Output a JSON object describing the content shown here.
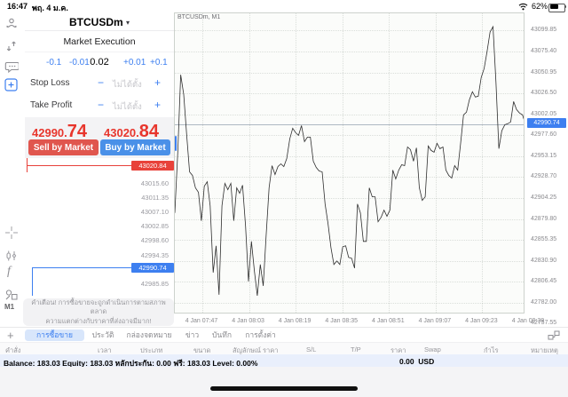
{
  "status_bar": {
    "time": "16:47",
    "date": "พฤ. 4 ม.ค.",
    "battery_pct": "62%"
  },
  "sidebar": {
    "icons": [
      "account-levels",
      "orders-up-down",
      "chat",
      "new-order",
      "crosshair",
      "candles",
      "indicators",
      "objects",
      "timeframe",
      "add"
    ],
    "timeframe": "M1"
  },
  "order_panel": {
    "symbol": "BTCUSDm",
    "symbol_chevron": "▾",
    "mode": "Market Execution",
    "volume": {
      "dec_large": "-0.1",
      "dec_small": "-0.01",
      "value": "0.02",
      "inc_small": "+0.01",
      "inc_large": "+0.1"
    },
    "stop_loss": {
      "label": "Stop Loss",
      "minus": "−",
      "value": "ไม่ได้ตั้ง",
      "plus": "+"
    },
    "take_profit": {
      "label": "Take Profit",
      "minus": "−",
      "value": "ไม่ได้ตั้ง",
      "plus": "+"
    },
    "bid_main": "42990.",
    "bid_frac": "74",
    "ask_main": "43020.",
    "ask_frac": "84",
    "sell_label": "Sell by Market",
    "buy_label": "Buy by Market",
    "ladder": [
      {
        "price": "43020.84",
        "badge": "ask"
      },
      {
        "price": "43015.60"
      },
      {
        "price": "43011.35"
      },
      {
        "price": "43007.10"
      },
      {
        "price": "43002.85"
      },
      {
        "price": "42998.60"
      },
      {
        "price": "42994.35"
      },
      {
        "price": "42990.74",
        "badge": "bid"
      },
      {
        "price": "42985.85"
      }
    ],
    "warning_line1": "คำเตือน! การซื้อขายจะถูกดำเนินการตามสภาพตลาด",
    "warning_line2": "ความแตกต่างกับราคาที่ส่งอาจมีมาก!"
  },
  "chart_data": {
    "type": "line",
    "title": "BTCUSDm, M1",
    "symbol": "BTCUSDm",
    "period": "M1",
    "current_bid": 42990.74,
    "current_ask": 43020.84,
    "ylim": [
      42768.3,
      43120.0
    ],
    "y_ticks": [
      43099.85,
      43075.4,
      43050.95,
      43026.5,
      43002.05,
      42977.6,
      42953.15,
      42928.7,
      42904.25,
      42879.8,
      42855.35,
      42830.9,
      42806.45,
      42782.0,
      42757.55
    ],
    "x_ticks": [
      "4 Jan 07:47",
      "4 Jan 08:03",
      "4 Jan 08:19",
      "4 Jan 08:35",
      "4 Jan 08:51",
      "4 Jan 09:07",
      "4 Jan 09:23",
      "4 Jan 09:39"
    ],
    "start_time": "4 Jan 07:38",
    "interval_min": 1,
    "prices": [
      42886.9,
      42957.7,
      43048.2,
      43025.3,
      42978.5,
      42934.8,
      42930.6,
      42916.1,
      42910.9,
      42877.6,
      42918.1,
      42923.3,
      42895.2,
      42817.2,
      42848.4,
      42791.2,
      42895.2,
      42921.3,
      42914.0,
      42921.3,
      42877.6,
      42916.1,
      42909.8,
      42919.2,
      42871.3,
      42806.8,
      42853.6,
      42819.3,
      42790.2,
      42826.6,
      42801.6,
      42860.9,
      42916.1,
      42942.1,
      42931.7,
      42941.0,
      42944.2,
      42941.0,
      42950.4,
      42973.3,
      42985.8,
      42980.6,
      42977.5,
      42988.9,
      42970.2,
      42975.4,
      42975.4,
      42947.3,
      42940.0,
      42935.8,
      42934.8,
      42897.3,
      42874.4,
      42846.3,
      42826.6,
      42830.7,
      42826.6,
      42847.4,
      42848.4,
      42834.9,
      42833.9,
      42822.4,
      42897.3,
      42886.9,
      42853.6,
      42853.6,
      42916.1,
      42905.7,
      42905.7,
      42876.5,
      42881.7,
      42890.1,
      42882.8,
      42890.1,
      42936.9,
      42926.5,
      42936.9,
      42943.1,
      42942.1,
      42963.9,
      42960.8,
      42947.3,
      42962.9,
      42916.1,
      42901.5,
      42905.7,
      42965.0,
      42959.8,
      42957.7,
      42968.1,
      42961.9,
      42963.9,
      42936.9,
      42930.6,
      42927.5,
      42942.1,
      42936.9,
      42968.1,
      43001.4,
      43004.5,
      43019.1,
      43028.4,
      43022.2,
      43023.2,
      43045.1,
      43055.5,
      43075.3,
      43098.2,
      43104.4,
      43039.9,
      42961.9,
      42982.7,
      42989.9,
      42991.0,
      42993.1,
      43017.0,
      43007.6,
      43003.5,
      43001.4,
      42990.7
    ]
  },
  "tabs_bar": {
    "tabs": [
      "การซื้อขาย",
      "ประวัติ",
      "กล่องจดหมาย",
      "ข่าว",
      "บันทึก",
      "การตั้งค่า"
    ],
    "selected": 0
  },
  "positions_table": {
    "headers": [
      "คำสั่ง",
      "เวลา",
      "ประเภท",
      "ขนาด",
      "สัญลักษณ์",
      "ราคา",
      "S/L",
      "T/P",
      "ราคา",
      "Swap",
      "กำไร",
      "หมายเหตุ"
    ]
  },
  "balance_bar": {
    "summary": "Balance: 183.03 Equity: 183.03 หลักประกัน: 0.00 ฟรี: 183.03 Level: 0.00%",
    "profit": "0.00",
    "currency": "USD"
  },
  "colors": {
    "accent_blue": "#3d7ff0",
    "price_red": "#e8362d",
    "sell_button": "#e0564e",
    "buy_button": "#4a90e8",
    "badge_red": "#e8423a",
    "badge_blue": "#3d7ff0"
  }
}
